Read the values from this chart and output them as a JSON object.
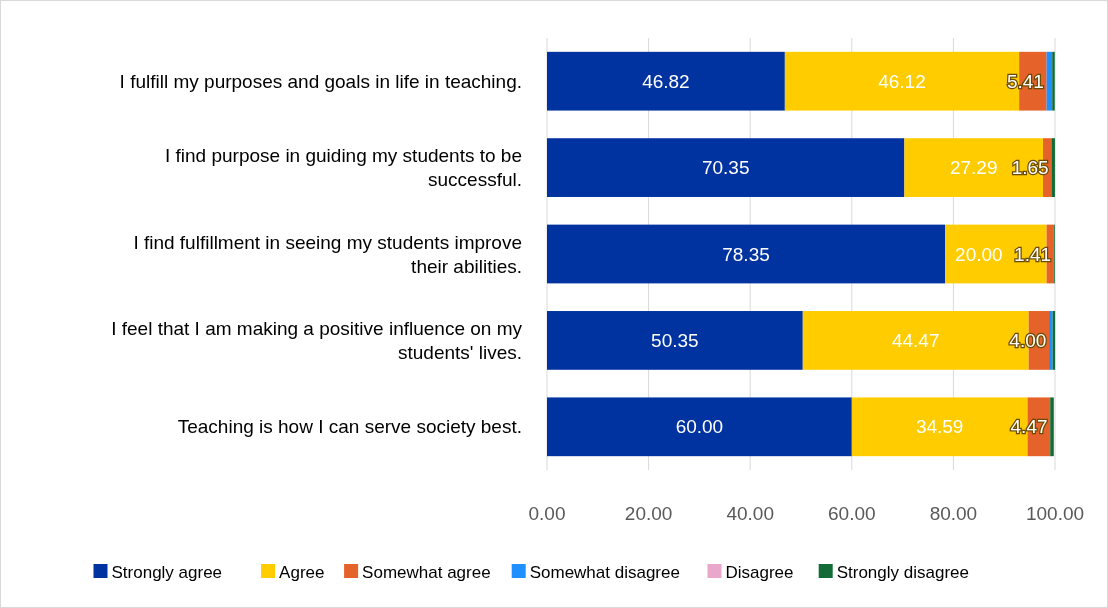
{
  "chart_data": {
    "type": "bar",
    "orientation": "horizontal",
    "stacked": true,
    "categories": [
      "I fulfill my purposes and goals in life in teaching.",
      "I find purpose in guiding my students to be successful.",
      "I find fulfillment in seeing my students improve their abilities.",
      "I feel that I am making a positive influence on my students' lives.",
      "Teaching is how I can serve society best."
    ],
    "series": [
      {
        "name": "Strongly agree",
        "color": "#0033a0",
        "values": [
          46.82,
          70.35,
          78.35,
          50.35,
          60.0
        ],
        "value_labels": [
          "46.82",
          "70.35",
          "78.35",
          "50.35",
          "60.00"
        ]
      },
      {
        "name": "Agree",
        "color": "#ffcc00",
        "values": [
          46.12,
          27.29,
          20.0,
          44.47,
          34.59
        ],
        "value_labels": [
          "46.12",
          "27.29",
          "20.00",
          "44.47",
          "34.59"
        ]
      },
      {
        "name": "Somewhat agree",
        "color": "#e5622a",
        "values": [
          5.41,
          1.65,
          1.41,
          4.0,
          4.47
        ],
        "value_labels": [
          "5.41",
          "1.65",
          "1.41",
          "4.00",
          "4.47"
        ]
      },
      {
        "name": "Somewhat disagree",
        "color": "#1e90ff",
        "values": [
          1.1,
          0,
          0,
          0.7,
          0
        ]
      },
      {
        "name": "Disagree",
        "color": "#e9a7cc",
        "values": [
          null,
          0,
          0,
          0,
          null
        ]
      },
      {
        "name": "Strongly disagree",
        "color": "#136b37",
        "values": [
          0.5,
          0.7,
          0.2,
          0.5,
          0.7
        ]
      }
    ],
    "xlim": [
      0,
      100
    ],
    "xticks": [
      {
        "value": 0,
        "label": "0.00"
      },
      {
        "value": 20,
        "label": "20.00"
      },
      {
        "value": 40,
        "label": "40.00"
      },
      {
        "value": 60,
        "label": "60.00"
      },
      {
        "value": 80,
        "label": "80.00"
      },
      {
        "value": 100,
        "label": "100.00"
      }
    ],
    "grid": "x",
    "legend": "bottom"
  }
}
